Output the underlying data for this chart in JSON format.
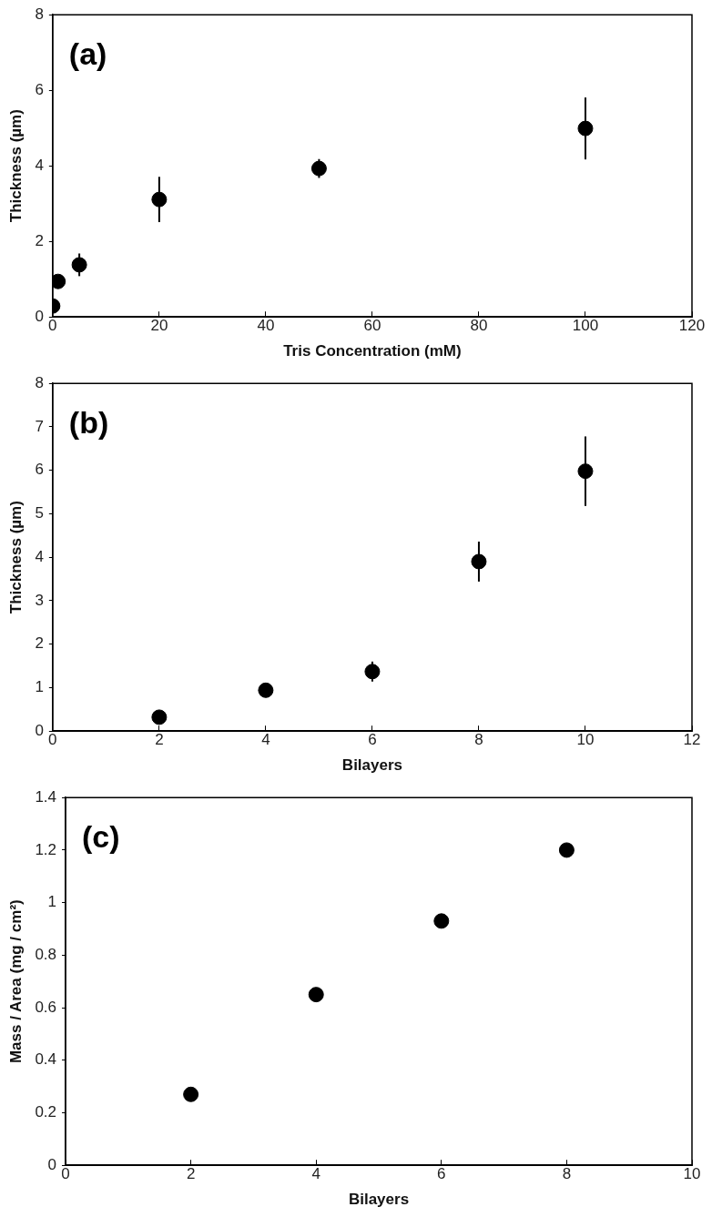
{
  "chart_data": [
    {
      "type": "scatter",
      "xlabel": "Tris Concentration (mM)",
      "ylabel": "Thickness (µm)",
      "annotations": [
        "(a)"
      ],
      "x": [
        0,
        1,
        5,
        20,
        50,
        100
      ],
      "series": [
        {
          "color": "#000000",
          "values": [
            0.29,
            0.94,
            1.38,
            3.11,
            3.93,
            4.99
          ],
          "errors": [
            null,
            null,
            0.3,
            0.6,
            0.25,
            0.82
          ]
        }
      ],
      "xlim": [
        0,
        120
      ],
      "xticks": [
        0,
        20,
        40,
        60,
        80,
        100,
        120
      ],
      "ylim": [
        0,
        8
      ],
      "yticks": [
        0,
        2,
        4,
        6,
        8
      ],
      "grid": false,
      "legend": false,
      "marker": "circle"
    },
    {
      "type": "scatter",
      "xlabel": "Bilayers",
      "ylabel": "Thickness (µm)",
      "annotations": [
        "(b)"
      ],
      "x": [
        2,
        4,
        6,
        8,
        10
      ],
      "series": [
        {
          "color": "#000000",
          "values": [
            0.32,
            0.94,
            1.37,
            3.9,
            5.98
          ],
          "errors": [
            null,
            null,
            0.23,
            0.46,
            0.8
          ]
        }
      ],
      "xlim": [
        0,
        12
      ],
      "xticks": [
        0,
        2,
        4,
        6,
        8,
        10,
        12
      ],
      "ylim": [
        0,
        8
      ],
      "yticks": [
        0,
        1,
        2,
        3,
        4,
        5,
        6,
        7,
        8
      ],
      "grid": false,
      "legend": false,
      "marker": "circle"
    },
    {
      "type": "scatter",
      "xlabel": "Bilayers",
      "ylabel": "Mass / Area (mg / cm²)",
      "annotations": [
        "(c)"
      ],
      "x": [
        2,
        4,
        6,
        8
      ],
      "series": [
        {
          "color": "#000000",
          "values": [
            0.27,
            0.65,
            0.93,
            1.2
          ]
        }
      ],
      "xlim": [
        0,
        10
      ],
      "xticks": [
        0,
        2,
        4,
        6,
        8,
        10
      ],
      "ylim": [
        0,
        1.4
      ],
      "yticks": [
        0,
        0.2,
        0.4,
        0.6,
        0.8,
        1,
        1.2,
        1.4
      ],
      "grid": false,
      "legend": false,
      "marker": "circle"
    }
  ]
}
